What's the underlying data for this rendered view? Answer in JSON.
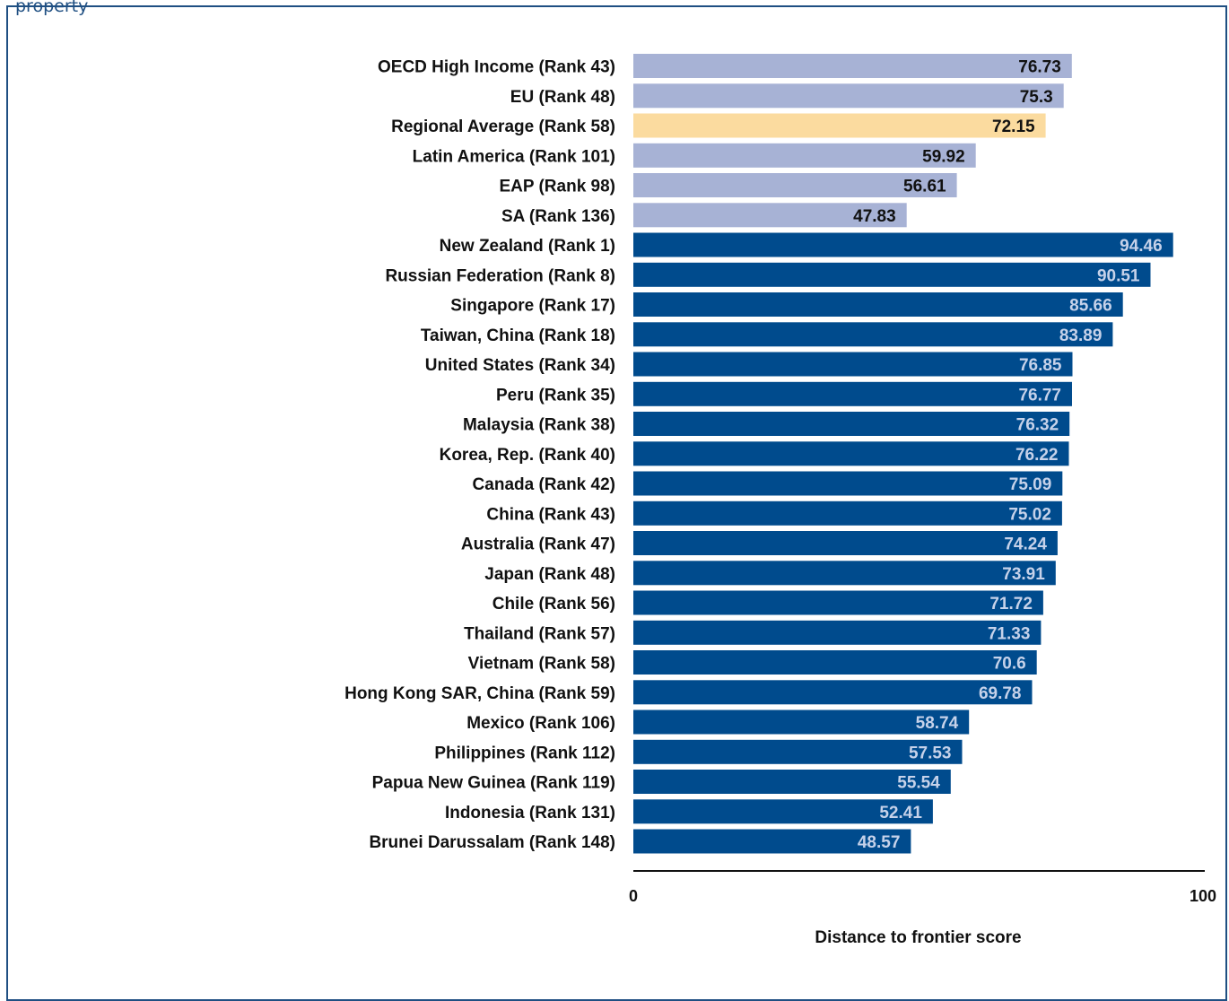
{
  "header": {
    "caption": "property"
  },
  "colors": {
    "aggregate": "#a7b2d5",
    "highlight": "#fbdb9f",
    "economy": "#004b8d",
    "dark_text": "#111111",
    "light_text": "#c6d2ea"
  },
  "chart_data": {
    "type": "bar",
    "orientation": "horizontal",
    "xlabel": "Distance to frontier score",
    "xlim": [
      0,
      100
    ],
    "xticks": [
      "0",
      "100"
    ],
    "grid": false,
    "categories": [
      "OECD High Income (Rank 43)",
      "EU (Rank 48)",
      "Regional Average (Rank 58)",
      "Latin America (Rank 101)",
      "EAP (Rank 98)",
      "SA (Rank 136)",
      "New Zealand (Rank 1)",
      "Russian Federation (Rank 8)",
      "Singapore (Rank 17)",
      "Taiwan, China (Rank 18)",
      "United States (Rank 34)",
      "Peru (Rank 35)",
      "Malaysia (Rank 38)",
      "Korea, Rep. (Rank 40)",
      "Canada (Rank 42)",
      "China (Rank 43)",
      "Australia (Rank 47)",
      "Japan (Rank 48)",
      "Chile (Rank 56)",
      "Thailand (Rank 57)",
      "Vietnam (Rank 58)",
      "Hong Kong SAR, China (Rank 59)",
      "Mexico (Rank 106)",
      "Philippines (Rank 112)",
      "Papua New Guinea (Rank 119)",
      "Indonesia (Rank 131)",
      "Brunei Darussalam (Rank 148)"
    ],
    "values": [
      76.73,
      75.3,
      72.15,
      59.92,
      56.61,
      47.83,
      94.46,
      90.51,
      85.66,
      83.89,
      76.85,
      76.77,
      76.32,
      76.22,
      75.09,
      75.02,
      74.24,
      73.91,
      71.72,
      71.33,
      70.6,
      69.78,
      58.74,
      57.53,
      55.54,
      52.41,
      48.57
    ],
    "value_labels": [
      "76.73",
      "75.3",
      "72.15",
      "59.92",
      "56.61",
      "47.83",
      "94.46",
      "90.51",
      "85.66",
      "83.89",
      "76.85",
      "76.77",
      "76.32",
      "76.22",
      "75.09",
      "75.02",
      "74.24",
      "73.91",
      "71.72",
      "71.33",
      "70.6",
      "69.78",
      "58.74",
      "57.53",
      "55.54",
      "52.41",
      "48.57"
    ],
    "bar_groups": [
      "aggregate",
      "aggregate",
      "highlight",
      "aggregate",
      "aggregate",
      "aggregate",
      "economy",
      "economy",
      "economy",
      "economy",
      "economy",
      "economy",
      "economy",
      "economy",
      "economy",
      "economy",
      "economy",
      "economy",
      "economy",
      "economy",
      "economy",
      "economy",
      "economy",
      "economy",
      "economy",
      "economy",
      "economy"
    ]
  }
}
